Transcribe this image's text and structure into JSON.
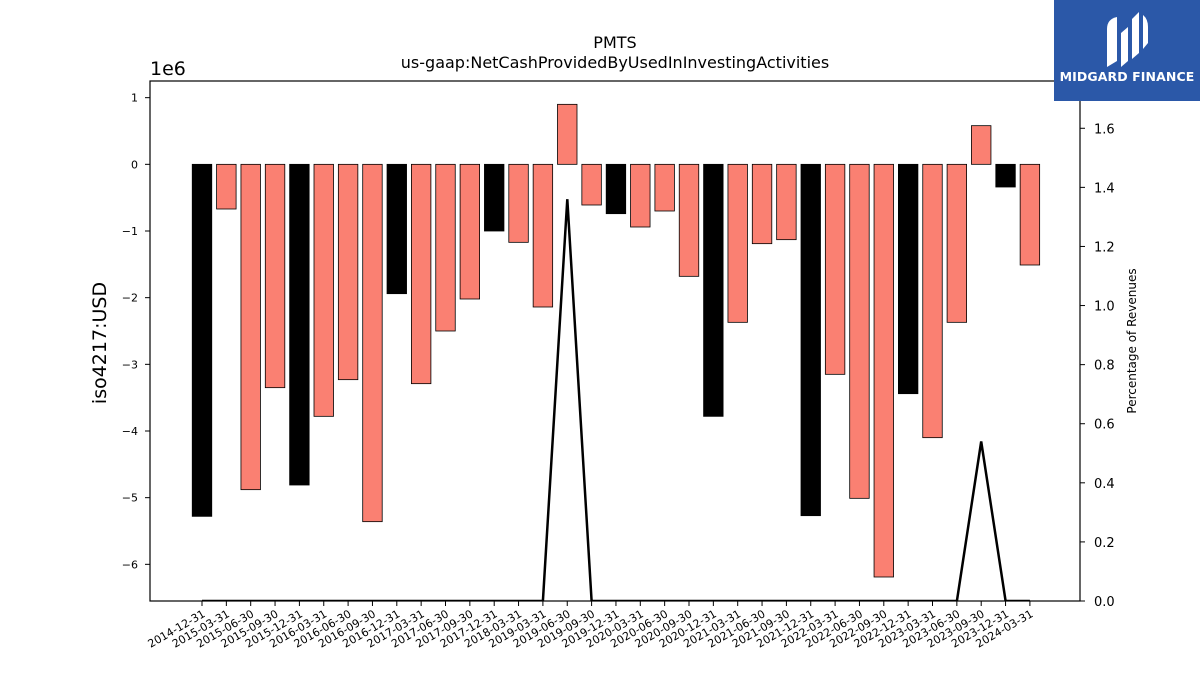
{
  "chart_data": {
    "type": "bar",
    "title": "PMTS",
    "subtitle": "us-gaap:NetCashProvidedByUsedInInvestingActivities",
    "ylabel": "iso4217:USD",
    "y_multiplier": "1e6",
    "y2label": "Percentage of Revenues",
    "ylim": [
      -6.55,
      1.25
    ],
    "y2lim": [
      0.0,
      1.76
    ],
    "yticks": [
      "1",
      "0",
      "−1",
      "−2",
      "−3",
      "−4",
      "−5",
      "−6"
    ],
    "y2ticks": [
      "0.0",
      "0.2",
      "0.4",
      "0.6",
      "0.8",
      "1.0",
      "1.2",
      "1.4",
      "1.6"
    ],
    "categories": [
      "2014-12-31",
      "2015-03-31",
      "2015-06-30",
      "2015-09-30",
      "2015-12-31",
      "2016-03-31",
      "2016-06-30",
      "2016-09-30",
      "2016-12-31",
      "2017-03-31",
      "2017-06-30",
      "2017-09-30",
      "2017-12-31",
      "2018-03-31",
      "2019-03-31",
      "2019-06-30",
      "2019-09-30",
      "2019-12-31",
      "2020-03-31",
      "2020-06-30",
      "2020-09-30",
      "2020-12-31",
      "2021-03-31",
      "2021-06-30",
      "2021-09-30",
      "2021-12-31",
      "2022-03-31",
      "2022-06-30",
      "2022-09-30",
      "2022-12-31",
      "2023-03-31",
      "2023-06-30",
      "2023-09-30",
      "2023-12-31",
      "2024-03-31"
    ],
    "series": [
      {
        "type": "bar",
        "values": [
          -5.28,
          -0.67,
          -4.88,
          -3.35,
          -4.81,
          -3.78,
          -3.23,
          -5.36,
          -1.94,
          -3.29,
          -2.5,
          -2.02,
          -1.0,
          -1.17,
          -2.14,
          0.9,
          -0.61,
          -0.74,
          -0.94,
          -0.7,
          -1.68,
          -3.78,
          -2.37,
          -1.19,
          -1.13,
          -5.27,
          -3.15,
          -5.01,
          -6.19,
          -3.44,
          -4.1,
          -2.37,
          0.58,
          -0.34,
          -1.51
        ],
        "colors": [
          "black",
          "salmon",
          "salmon",
          "salmon",
          "black",
          "salmon",
          "salmon",
          "salmon",
          "black",
          "salmon",
          "salmon",
          "salmon",
          "black",
          "salmon",
          "salmon",
          "salmon",
          "salmon",
          "black",
          "salmon",
          "salmon",
          "salmon",
          "black",
          "salmon",
          "salmon",
          "salmon",
          "black",
          "salmon",
          "salmon",
          "salmon",
          "black",
          "salmon",
          "salmon",
          "salmon",
          "black",
          "salmon"
        ]
      },
      {
        "type": "line",
        "axis": "right",
        "values": [
          0,
          0,
          0,
          0,
          0,
          0,
          0,
          0,
          0,
          0,
          0,
          0,
          0,
          0,
          0,
          1.36,
          0,
          0,
          0,
          0,
          0,
          0,
          0,
          0,
          0,
          0,
          0,
          0,
          0,
          0,
          0,
          0,
          0.54,
          0,
          0
        ]
      }
    ],
    "palette": {
      "black": "#000000",
      "salmon": "#fa8072"
    }
  },
  "logo": {
    "text": "MIDGARD FINANCE",
    "background": "#2b58a8"
  }
}
